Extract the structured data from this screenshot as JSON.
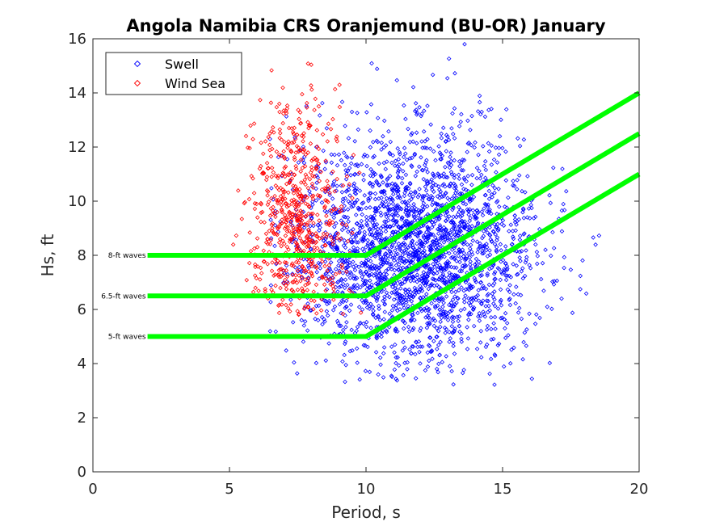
{
  "chart_data": {
    "type": "scatter",
    "title": "Angola Namibia CRS Oranjemund (BU-OR) January",
    "xlabel": "Period, s",
    "ylabel": "Hs, ft",
    "xlim": [
      0,
      20
    ],
    "ylim": [
      0,
      16
    ],
    "xticks": [
      "0",
      "5",
      "10",
      "15",
      "20"
    ],
    "yticks": [
      "0",
      "2",
      "4",
      "6",
      "8",
      "10",
      "12",
      "14",
      "16"
    ],
    "legend": {
      "position": "top-left",
      "entries": [
        "Swell",
        "Wind Sea"
      ]
    },
    "series": [
      {
        "name": "Swell",
        "color": "#0000ff",
        "marker": "diamond",
        "distribution": {
          "x_mean": 11.8,
          "x_sd": 2.2,
          "y_mean": 8.2,
          "y_sd": 2.1,
          "x_range": [
            6.3,
            19.8
          ],
          "y_range": [
            3.2,
            15.9
          ],
          "count": 2600
        }
      },
      {
        "name": "Wind Sea",
        "color": "#ff0000",
        "marker": "diamond",
        "distribution": {
          "x_mean": 7.4,
          "x_sd": 0.85,
          "y_mean": 9.2,
          "y_sd": 2.2,
          "x_range": [
            5.0,
            10.0
          ],
          "y_range": [
            5.8,
            15.3
          ],
          "count": 650
        }
      }
    ],
    "threshold_lines": [
      {
        "label": "8-ft waves",
        "color": "#00ff00",
        "points": [
          [
            2,
            8
          ],
          [
            10,
            8
          ],
          [
            20,
            14
          ]
        ]
      },
      {
        "label": "6.5-ft waves",
        "color": "#00ff00",
        "points": [
          [
            2,
            6.5
          ],
          [
            10,
            6.5
          ],
          [
            20,
            12.5
          ]
        ]
      },
      {
        "label": "5-ft waves",
        "color": "#00ff00",
        "points": [
          [
            2,
            5
          ],
          [
            10,
            5
          ],
          [
            20,
            11
          ]
        ]
      }
    ]
  }
}
